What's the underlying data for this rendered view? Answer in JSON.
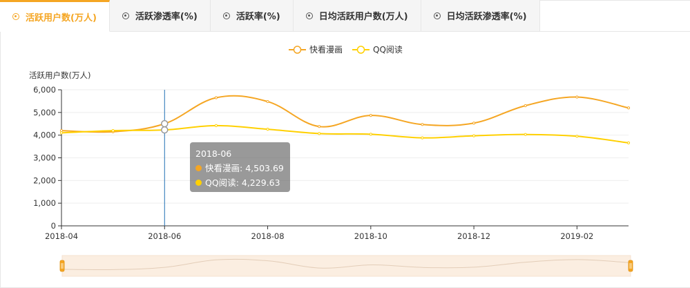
{
  "tabs": [
    {
      "label": "活跃用户数(万人)",
      "active": true
    },
    {
      "label": "活跃渗透率(%)",
      "active": false
    },
    {
      "label": "活跃率(%)",
      "active": false
    },
    {
      "label": "日均活跃用户数(万人)",
      "active": false
    },
    {
      "label": "日均活跃渗透率(%)",
      "active": false
    }
  ],
  "tooltip": {
    "title": "2018-06",
    "rows": [
      {
        "name": "快看漫画",
        "value": "4,503.69",
        "color": "#f5a623"
      },
      {
        "name": "QQ阅读",
        "value": "4,229.63",
        "color": "#ffd000"
      }
    ]
  },
  "chart_data": {
    "type": "line",
    "ylabel": "活跃用户数(万人)",
    "ylim": [
      0,
      6000
    ],
    "yticks": [
      "0",
      "1,000",
      "2,000",
      "3,000",
      "4,000",
      "5,000",
      "6,000"
    ],
    "x": [
      "2018-04",
      "2018-05",
      "2018-06",
      "2018-07",
      "2018-08",
      "2018-09",
      "2018-10",
      "2018-11",
      "2018-12",
      "2019-01",
      "2019-02",
      "2019-03"
    ],
    "xtick_labels": [
      "2018-04",
      "2018-06",
      "2018-08",
      "2018-10",
      "2018-12",
      "2019-02"
    ],
    "legend_position": "top-center",
    "grid": true,
    "highlight_index": 2,
    "series": [
      {
        "name": "快看漫画",
        "color": "#f5a623",
        "values": [
          4200,
          4150,
          4503.69,
          5650,
          5480,
          4380,
          4870,
          4470,
          4530,
          5300,
          5680,
          5200
        ]
      },
      {
        "name": "QQ阅读",
        "color": "#ffd000",
        "values": [
          4100,
          4200,
          4229.63,
          4420,
          4260,
          4070,
          4040,
          3880,
          3970,
          4030,
          3950,
          3660
        ]
      }
    ],
    "zoom_range": [
      0,
      1
    ]
  }
}
